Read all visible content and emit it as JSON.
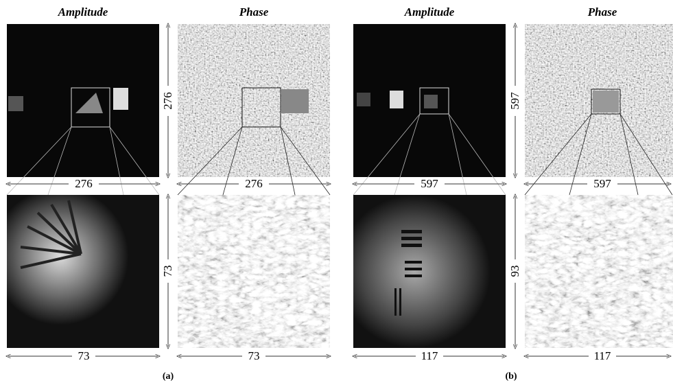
{
  "panels": [
    {
      "label": "(a)",
      "amplitude_title": "Amplitude",
      "phase_title": "Phase",
      "top": {
        "amplitude_width": "276",
        "height": "276",
        "phase_width": "276"
      },
      "bottom": {
        "amplitude_width": "73",
        "height": "73",
        "phase_width": "73"
      }
    },
    {
      "label": "(b)",
      "amplitude_title": "Amplitude",
      "phase_title": "Phase",
      "top": {
        "amplitude_width": "597",
        "height": "597",
        "phase_width": "597"
      },
      "bottom": {
        "amplitude_width": "117",
        "height": "93",
        "phase_width": "117"
      }
    }
  ]
}
